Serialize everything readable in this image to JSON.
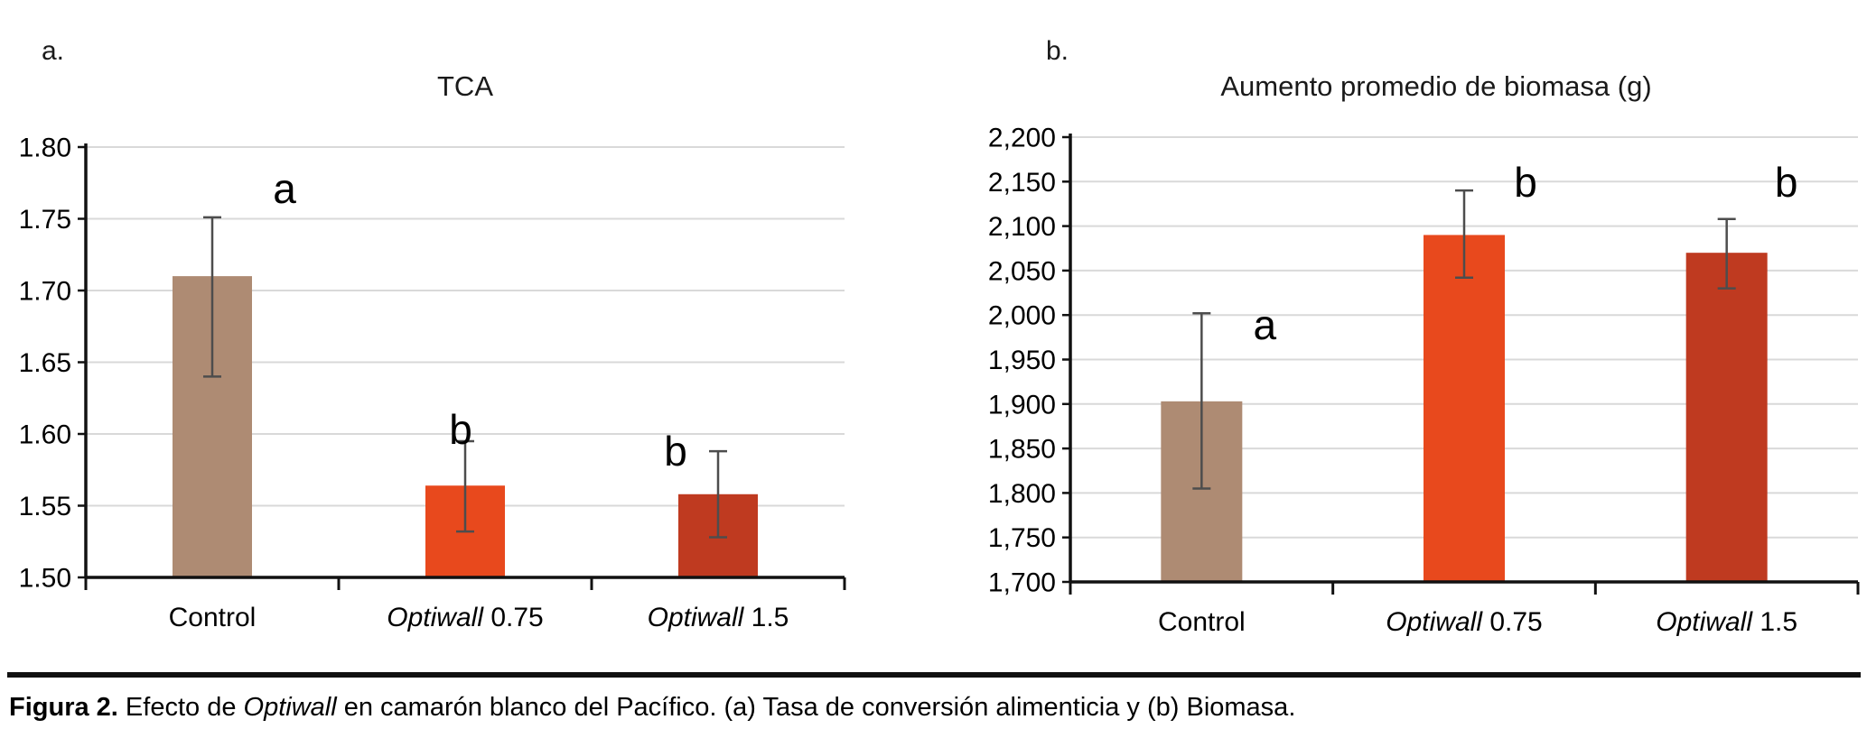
{
  "figure": {
    "caption_segments": [
      {
        "text": "Figura 2.",
        "bold": true,
        "italic": false
      },
      {
        "text": " Efecto de ",
        "bold": false,
        "italic": false
      },
      {
        "text": "Optiwall",
        "bold": false,
        "italic": true
      },
      {
        "text": " en camarón blanco del Pacífico. (a) Tasa de conversión alimenticia y (b) Biomasa.",
        "bold": false,
        "italic": false
      }
    ]
  },
  "colors": {
    "background": "#ffffff",
    "grid": "#d9d9d9",
    "axis": "#111111",
    "error_bar": "#4d4d4d",
    "text": "#000000",
    "bar_control": "#ae8b73",
    "bar_optiwall_075": "#e8491d",
    "bar_optiwall_15": "#bf3a20"
  },
  "chart_data": [
    {
      "type": "bar",
      "panel_label": "a.",
      "title": "TCA",
      "xlabel": "",
      "ylabel": "",
      "grid": true,
      "legend_position": "none",
      "categories": [
        "Control",
        "Optiwall 0.75",
        "Optiwall 1.5"
      ],
      "italic_word": "Optiwall",
      "values": [
        1.71,
        1.564,
        1.558
      ],
      "error_low": [
        1.64,
        1.532,
        1.528
      ],
      "error_high": [
        1.751,
        1.595,
        1.588
      ],
      "bar_colors": [
        "#ae8b73",
        "#e8491d",
        "#bf3a20"
      ],
      "sig_letters": [
        {
          "letter": "a",
          "dx": 80,
          "v": 1.761
        },
        {
          "letter": "b",
          "dx": -5,
          "v": 1.593
        },
        {
          "letter": "b",
          "dx": -47,
          "v": 1.578
        }
      ],
      "ylim": [
        1.5,
        1.8
      ],
      "ytick_step": 0.05,
      "yticks": [
        {
          "label": "1.80",
          "value": 1.8
        },
        {
          "label": "1.75",
          "value": 1.75
        },
        {
          "label": "1.70",
          "value": 1.7
        },
        {
          "label": "1.65",
          "value": 1.65
        },
        {
          "label": "1.60",
          "value": 1.6
        },
        {
          "label": "1.55",
          "value": 1.55
        },
        {
          "label": "1.50",
          "value": 1.5
        }
      ]
    },
    {
      "type": "bar",
      "panel_label": "b.",
      "title": "Aumento promedio de biomasa (g)",
      "xlabel": "",
      "ylabel": "",
      "grid": true,
      "legend_position": "none",
      "categories": [
        "Control",
        "Optiwall 0.75",
        "Optiwall 1.5"
      ],
      "italic_word": "Optiwall",
      "values": [
        1903,
        2090,
        2070
      ],
      "error_low": [
        1805,
        2042,
        2030
      ],
      "error_high": [
        2002,
        2140,
        2108
      ],
      "bar_colors": [
        "#ae8b73",
        "#e8491d",
        "#bf3a20"
      ],
      "sig_letters": [
        {
          "letter": "a",
          "dx": 70,
          "v": 1973
        },
        {
          "letter": "b",
          "dx": 68,
          "v": 2133
        },
        {
          "letter": "b",
          "dx": 66,
          "v": 2133
        }
      ],
      "ylim": [
        1700,
        2200
      ],
      "ytick_step": 50,
      "yticks": [
        {
          "label": "2,200",
          "value": 2200
        },
        {
          "label": "2,150",
          "value": 2150
        },
        {
          "label": "2,100",
          "value": 2100
        },
        {
          "label": "2,050",
          "value": 2050
        },
        {
          "label": "2,000",
          "value": 2000
        },
        {
          "label": "1,950",
          "value": 1950
        },
        {
          "label": "1,900",
          "value": 1900
        },
        {
          "label": "1,850",
          "value": 1850
        },
        {
          "label": "1,800",
          "value": 1800
        },
        {
          "label": "1,750",
          "value": 1750
        },
        {
          "label": "1,700",
          "value": 1700
        }
      ]
    }
  ]
}
